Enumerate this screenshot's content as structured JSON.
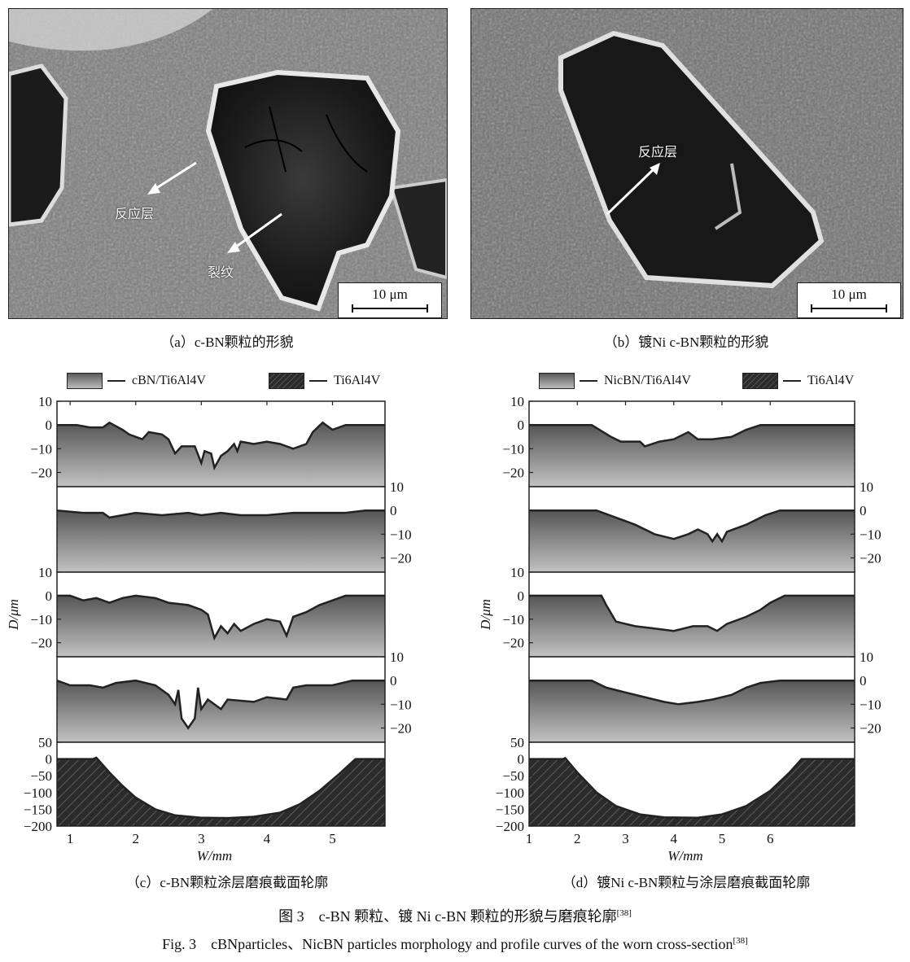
{
  "panels_sem": [
    {
      "id": "a",
      "labels": [
        "反应层",
        "裂纹"
      ],
      "scale_bar": "10 μm",
      "caption": "（a）c-BN颗粒的形貌"
    },
    {
      "id": "b",
      "labels": [
        "反应层"
      ],
      "scale_bar": "10 μm",
      "caption": "（b）镀Ni c-BN颗粒的形貌"
    }
  ],
  "chart_data": [
    {
      "id": "c",
      "type": "area",
      "caption": "（c）c-BN颗粒涂层磨痕截面轮廓",
      "legend": [
        {
          "label": "cBN/Ti6Al4V",
          "style": "gradient"
        },
        {
          "label": "Ti6Al4V",
          "style": "hatched"
        }
      ],
      "legend_placement": "top",
      "xlabel": "W/mm",
      "ylabel": "D/μm",
      "xlim": [
        0.8,
        5.8
      ],
      "xticks": [
        "1",
        "2",
        "3",
        "4",
        "5"
      ],
      "subplots": [
        {
          "series": "cBN/Ti6Al4V",
          "axis_side": "left",
          "ylim": [
            -26,
            10
          ],
          "yticks": [
            "10",
            "0",
            "−10",
            "−20"
          ],
          "points": [
            [
              0.8,
              0
            ],
            [
              1.1,
              0
            ],
            [
              1.3,
              -1
            ],
            [
              1.5,
              -1
            ],
            [
              1.6,
              1
            ],
            [
              1.8,
              -2
            ],
            [
              1.9,
              -4
            ],
            [
              2.1,
              -6
            ],
            [
              2.2,
              -3
            ],
            [
              2.4,
              -4
            ],
            [
              2.5,
              -6
            ],
            [
              2.6,
              -12
            ],
            [
              2.7,
              -9
            ],
            [
              2.9,
              -9
            ],
            [
              3.0,
              -16
            ],
            [
              3.05,
              -11
            ],
            [
              3.15,
              -12
            ],
            [
              3.2,
              -18
            ],
            [
              3.3,
              -13
            ],
            [
              3.4,
              -11
            ],
            [
              3.5,
              -8
            ],
            [
              3.55,
              -11
            ],
            [
              3.6,
              -7
            ],
            [
              3.8,
              -8
            ],
            [
              4.0,
              -7
            ],
            [
              4.2,
              -8
            ],
            [
              4.4,
              -10
            ],
            [
              4.6,
              -8
            ],
            [
              4.7,
              -3
            ],
            [
              4.85,
              1
            ],
            [
              5.0,
              -2
            ],
            [
              5.2,
              0
            ],
            [
              5.4,
              0
            ],
            [
              5.8,
              0
            ]
          ]
        },
        {
          "series": "cBN/Ti6Al4V",
          "axis_side": "right",
          "ylim": [
            -26,
            10
          ],
          "yticks": [
            "10",
            "0",
            "−10",
            "−20"
          ],
          "points": [
            [
              0.8,
              0
            ],
            [
              1.2,
              -1
            ],
            [
              1.5,
              -1
            ],
            [
              1.6,
              -3
            ],
            [
              1.8,
              -2
            ],
            [
              2.0,
              -1
            ],
            [
              2.4,
              -2
            ],
            [
              2.8,
              -1
            ],
            [
              3.0,
              -2
            ],
            [
              3.3,
              -1
            ],
            [
              3.6,
              -2
            ],
            [
              4.0,
              -2
            ],
            [
              4.4,
              -1
            ],
            [
              4.8,
              -1
            ],
            [
              5.2,
              -1
            ],
            [
              5.5,
              0
            ],
            [
              5.8,
              0
            ]
          ]
        },
        {
          "series": "cBN/Ti6Al4V",
          "axis_side": "left",
          "ylim": [
            -26,
            10
          ],
          "yticks": [
            "10",
            "0",
            "−10",
            "−20"
          ],
          "points": [
            [
              0.8,
              0
            ],
            [
              1.0,
              0
            ],
            [
              1.2,
              -2
            ],
            [
              1.4,
              -1
            ],
            [
              1.6,
              -3
            ],
            [
              1.8,
              -1
            ],
            [
              2.0,
              0
            ],
            [
              2.3,
              -1
            ],
            [
              2.5,
              -3
            ],
            [
              2.8,
              -4
            ],
            [
              3.0,
              -6
            ],
            [
              3.1,
              -8
            ],
            [
              3.2,
              -18
            ],
            [
              3.3,
              -13
            ],
            [
              3.4,
              -16
            ],
            [
              3.5,
              -12
            ],
            [
              3.6,
              -15
            ],
            [
              3.8,
              -12
            ],
            [
              4.0,
              -10
            ],
            [
              4.2,
              -11
            ],
            [
              4.3,
              -17
            ],
            [
              4.4,
              -9
            ],
            [
              4.6,
              -7
            ],
            [
              4.8,
              -4
            ],
            [
              5.0,
              -2
            ],
            [
              5.2,
              0
            ],
            [
              5.8,
              0
            ]
          ]
        },
        {
          "series": "cBN/Ti6Al4V",
          "axis_side": "right",
          "ylim": [
            -26,
            10
          ],
          "yticks": [
            "10",
            "0",
            "−10",
            "−20"
          ],
          "points": [
            [
              0.8,
              0
            ],
            [
              1.0,
              -2
            ],
            [
              1.3,
              -2
            ],
            [
              1.5,
              -3
            ],
            [
              1.7,
              -1
            ],
            [
              2.0,
              0
            ],
            [
              2.3,
              -2
            ],
            [
              2.5,
              -6
            ],
            [
              2.6,
              -10
            ],
            [
              2.65,
              -4
            ],
            [
              2.7,
              -16
            ],
            [
              2.8,
              -20
            ],
            [
              2.9,
              -16
            ],
            [
              2.95,
              -3
            ],
            [
              3.0,
              -12
            ],
            [
              3.1,
              -8
            ],
            [
              3.3,
              -12
            ],
            [
              3.4,
              -8
            ],
            [
              3.8,
              -9
            ],
            [
              4.0,
              -7
            ],
            [
              4.3,
              -8
            ],
            [
              4.4,
              -3
            ],
            [
              4.6,
              -2
            ],
            [
              5.0,
              -2
            ],
            [
              5.3,
              0
            ],
            [
              5.8,
              0
            ]
          ]
        },
        {
          "series": "Ti6Al4V",
          "axis_side": "left",
          "ylim": [
            -200,
            50
          ],
          "yticks": [
            "50",
            "0",
            "−50",
            "−100",
            "−150",
            "−200"
          ],
          "points": [
            [
              0.8,
              0
            ],
            [
              1.35,
              0
            ],
            [
              1.4,
              4
            ],
            [
              1.6,
              -40
            ],
            [
              1.8,
              -80
            ],
            [
              2.0,
              -115
            ],
            [
              2.3,
              -150
            ],
            [
              2.6,
              -168
            ],
            [
              3.0,
              -175
            ],
            [
              3.4,
              -176
            ],
            [
              3.8,
              -172
            ],
            [
              4.2,
              -160
            ],
            [
              4.5,
              -135
            ],
            [
              4.8,
              -95
            ],
            [
              5.1,
              -45
            ],
            [
              5.35,
              0
            ],
            [
              5.8,
              0
            ]
          ]
        }
      ]
    },
    {
      "id": "d",
      "type": "area",
      "caption": "（d）镀Ni c-BN颗粒与涂层磨痕截面轮廓",
      "legend": [
        {
          "label": "NicBN/Ti6Al4V",
          "style": "gradient"
        },
        {
          "label": "Ti6Al4V",
          "style": "hatched"
        }
      ],
      "legend_placement": "top",
      "xlabel": "W/mm",
      "ylabel": "D/μm",
      "xlim": [
        1,
        7.75
      ],
      "xticks": [
        "1",
        "2",
        "3",
        "4",
        "5",
        "6"
      ],
      "subplots": [
        {
          "series": "NicBN/Ti6Al4V",
          "axis_side": "left",
          "ylim": [
            -26,
            10
          ],
          "yticks": [
            "10",
            "0",
            "−10",
            "−20"
          ],
          "points": [
            [
              1,
              0
            ],
            [
              2.3,
              0
            ],
            [
              2.7,
              -5
            ],
            [
              2.9,
              -7
            ],
            [
              3.3,
              -7
            ],
            [
              3.4,
              -9
            ],
            [
              3.7,
              -7
            ],
            [
              4.0,
              -6
            ],
            [
              4.3,
              -3
            ],
            [
              4.5,
              -6
            ],
            [
              4.8,
              -6
            ],
            [
              5.2,
              -5
            ],
            [
              5.5,
              -2
            ],
            [
              5.8,
              0
            ],
            [
              7.75,
              0
            ]
          ]
        },
        {
          "series": "NicBN/Ti6Al4V",
          "axis_side": "right",
          "ylim": [
            -26,
            10
          ],
          "yticks": [
            "10",
            "0",
            "−10",
            "−20"
          ],
          "points": [
            [
              1,
              0
            ],
            [
              2.4,
              0
            ],
            [
              2.8,
              -3
            ],
            [
              3.2,
              -6
            ],
            [
              3.6,
              -10
            ],
            [
              4.0,
              -12
            ],
            [
              4.3,
              -10
            ],
            [
              4.5,
              -8
            ],
            [
              4.7,
              -10
            ],
            [
              4.8,
              -13
            ],
            [
              4.9,
              -10
            ],
            [
              5.0,
              -13
            ],
            [
              5.1,
              -9
            ],
            [
              5.5,
              -6
            ],
            [
              5.9,
              -2
            ],
            [
              6.2,
              0
            ],
            [
              7.75,
              0
            ]
          ]
        },
        {
          "series": "NicBN/Ti6Al4V",
          "axis_side": "left",
          "ylim": [
            -26,
            10
          ],
          "yticks": [
            "10",
            "0",
            "−10",
            "−20"
          ],
          "points": [
            [
              1,
              0
            ],
            [
              2.5,
              0
            ],
            [
              2.6,
              -4
            ],
            [
              2.8,
              -11
            ],
            [
              3.2,
              -13
            ],
            [
              3.6,
              -14
            ],
            [
              4.0,
              -15
            ],
            [
              4.4,
              -13
            ],
            [
              4.7,
              -13
            ],
            [
              4.9,
              -15
            ],
            [
              5.1,
              -12
            ],
            [
              5.5,
              -9
            ],
            [
              5.8,
              -6
            ],
            [
              6.0,
              -3
            ],
            [
              6.3,
              0
            ],
            [
              7.75,
              0
            ]
          ]
        },
        {
          "series": "NicBN/Ti6Al4V",
          "axis_side": "right",
          "ylim": [
            -26,
            10
          ],
          "yticks": [
            "10",
            "0",
            "−10",
            "−20"
          ],
          "points": [
            [
              1,
              0
            ],
            [
              2.3,
              0
            ],
            [
              2.6,
              -3
            ],
            [
              3.0,
              -5
            ],
            [
              3.4,
              -7
            ],
            [
              3.8,
              -9
            ],
            [
              4.1,
              -10
            ],
            [
              4.5,
              -9
            ],
            [
              4.8,
              -8
            ],
            [
              5.2,
              -6
            ],
            [
              5.5,
              -3
            ],
            [
              5.8,
              -1
            ],
            [
              6.2,
              0
            ],
            [
              7.75,
              0
            ]
          ]
        },
        {
          "series": "Ti6Al4V",
          "axis_side": "left",
          "ylim": [
            -200,
            50
          ],
          "yticks": [
            "50",
            "0",
            "−50",
            "−100",
            "−150",
            "−200"
          ],
          "points": [
            [
              1,
              0
            ],
            [
              1.7,
              0
            ],
            [
              1.75,
              3
            ],
            [
              2.0,
              -40
            ],
            [
              2.4,
              -100
            ],
            [
              2.8,
              -140
            ],
            [
              3.3,
              -165
            ],
            [
              3.8,
              -174
            ],
            [
              4.5,
              -175
            ],
            [
              5.0,
              -165
            ],
            [
              5.5,
              -140
            ],
            [
              6.0,
              -95
            ],
            [
              6.4,
              -40
            ],
            [
              6.65,
              0
            ],
            [
              7.75,
              0
            ]
          ]
        }
      ]
    }
  ],
  "figure_caption": {
    "zh": "图 3　c-BN 颗粒、镀 Ni c-BN 颗粒的形貌与磨痕轮廓",
    "en": "Fig. 3　cBNparticles、NicBN particles morphology and profile curves of the worn cross-section",
    "ref": "[38]"
  },
  "colors": {
    "profile_line": "#222222",
    "gradient_top": "#555555",
    "gradient_bottom": "#c2c2c2",
    "hatch_fill": "#2b2b2b"
  }
}
